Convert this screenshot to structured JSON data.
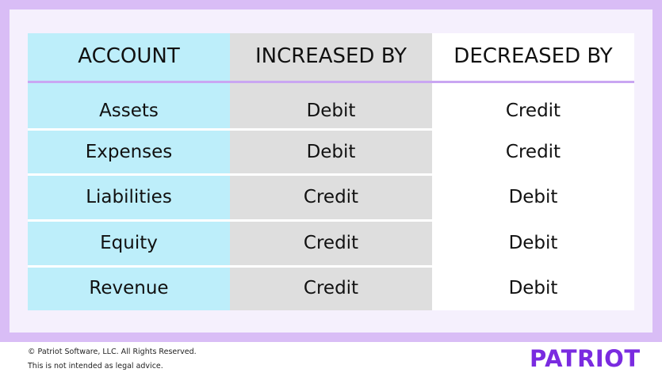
{
  "table": {
    "header": [
      "ACCOUNT",
      "INCREASED BY",
      "DECREASED BY"
    ],
    "rows": [
      [
        "Assets",
        "Debit",
        "Credit"
      ],
      [
        "Expenses",
        "Debit",
        "Credit"
      ],
      [
        "Liabilities",
        "Credit",
        "Debit"
      ],
      [
        "Equity",
        "Credit",
        "Debit"
      ],
      [
        "Revenue",
        "Credit",
        "Debit"
      ]
    ]
  },
  "footer": {
    "copyright": "© Patriot Software, LLC. All Rights Reserved.",
    "disclaimer": "This is not intended as legal advice.",
    "logo": "PATRIOT"
  }
}
